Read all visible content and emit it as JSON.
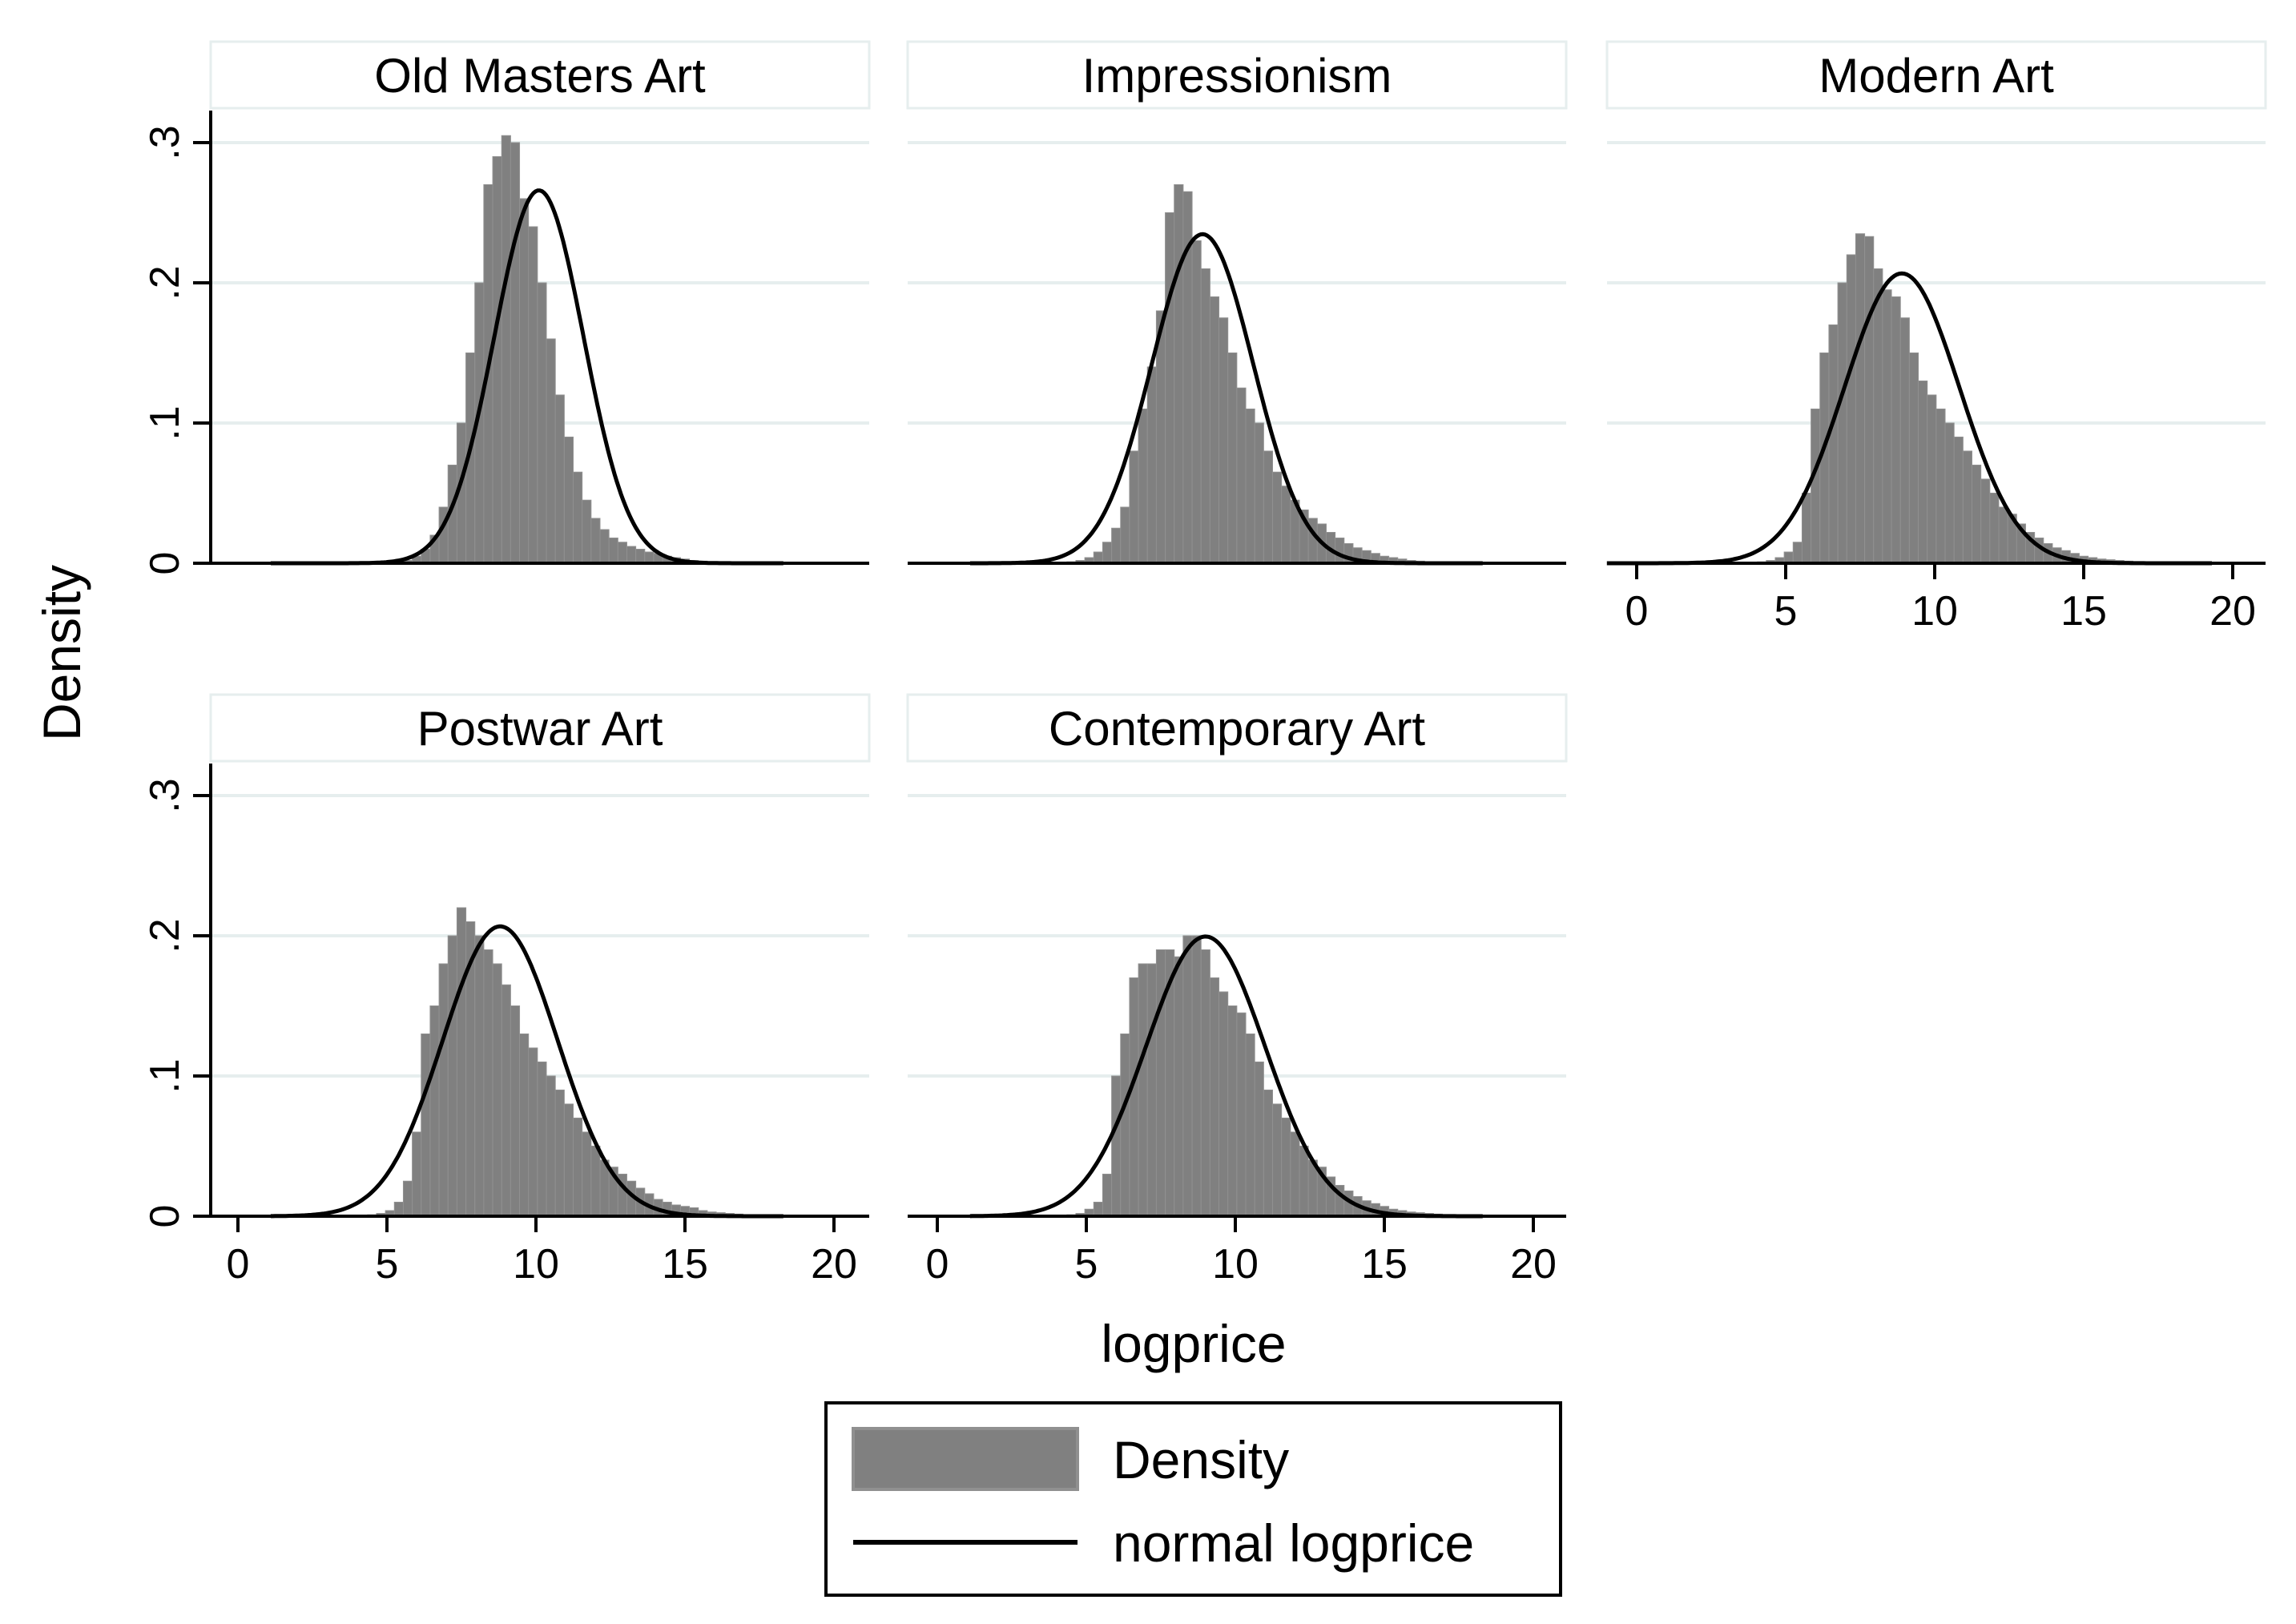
{
  "chart_data": {
    "type": "histogram",
    "layout": "faceted grid, 2 rows x 3 columns",
    "xlabel": "logprice",
    "ylabel": "Density",
    "xlim": [
      0,
      20
    ],
    "ylim": [
      0,
      0.3
    ],
    "xticks": [
      {
        "value": 0,
        "label": "0"
      },
      {
        "value": 5,
        "label": "5"
      },
      {
        "value": 10,
        "label": "10"
      },
      {
        "value": 15,
        "label": "15"
      },
      {
        "value": 20,
        "label": "20"
      }
    ],
    "yticks": [
      {
        "value": 0,
        "label": "0"
      },
      {
        "value": 0.1,
        "label": ".1"
      },
      {
        "value": 0.2,
        "label": ".2"
      },
      {
        "value": 0.3,
        "label": ".3"
      }
    ],
    "grid": true,
    "bar_width": 0.3,
    "colors": {
      "bars": "#808080",
      "bar_edge": "#909090",
      "curve": "#000000",
      "grid": "#e6eeee",
      "title_box_border": "#e6eeee"
    },
    "legend": {
      "position": "bottom-center",
      "entries": [
        {
          "label": "Density",
          "symbol": "bar"
        },
        {
          "label": "normal logprice",
          "symbol": "line"
        }
      ]
    },
    "panels": [
      {
        "title": "Old Masters Art",
        "normal": {
          "mean": 10.1,
          "sd": 1.5,
          "x_range": [
            1.1,
            18.3
          ]
        },
        "histogram": {
          "x": [
            5.7,
            6.0,
            6.3,
            6.6,
            6.9,
            7.2,
            7.5,
            7.8,
            8.1,
            8.4,
            8.7,
            9.0,
            9.3,
            9.6,
            9.9,
            10.2,
            10.5,
            10.8,
            11.1,
            11.4,
            11.7,
            12.0,
            12.3,
            12.6,
            12.9,
            13.2,
            13.5,
            13.8,
            14.1,
            14.4,
            14.7,
            15.0,
            15.3,
            15.6,
            15.9,
            16.2,
            16.5,
            16.8
          ],
          "y": [
            0.002,
            0.005,
            0.01,
            0.02,
            0.04,
            0.07,
            0.1,
            0.15,
            0.2,
            0.27,
            0.29,
            0.305,
            0.3,
            0.26,
            0.24,
            0.2,
            0.16,
            0.12,
            0.09,
            0.065,
            0.045,
            0.032,
            0.024,
            0.018,
            0.015,
            0.012,
            0.01,
            0.008,
            0.007,
            0.005,
            0.004,
            0.003,
            0.002,
            0.0015,
            0.001,
            0.001,
            0.0005,
            0.0005
          ]
        }
      },
      {
        "title": "Impressionism",
        "normal": {
          "mean": 8.9,
          "sd": 1.7,
          "x_range": [
            1.1,
            18.3
          ]
        },
        "histogram": {
          "x": [
            4.5,
            4.8,
            5.1,
            5.4,
            5.7,
            6.0,
            6.3,
            6.6,
            6.9,
            7.2,
            7.5,
            7.8,
            8.1,
            8.4,
            8.7,
            9.0,
            9.3,
            9.6,
            9.9,
            10.2,
            10.5,
            10.8,
            11.1,
            11.4,
            11.7,
            12.0,
            12.3,
            12.6,
            12.9,
            13.2,
            13.5,
            13.8,
            14.1,
            14.4,
            14.7,
            15.0,
            15.3,
            15.6,
            15.9,
            16.2,
            16.5,
            16.8,
            17.1
          ],
          "y": [
            0.001,
            0.002,
            0.004,
            0.008,
            0.015,
            0.025,
            0.04,
            0.08,
            0.11,
            0.14,
            0.18,
            0.25,
            0.27,
            0.265,
            0.23,
            0.21,
            0.19,
            0.175,
            0.15,
            0.125,
            0.11,
            0.1,
            0.08,
            0.065,
            0.055,
            0.045,
            0.038,
            0.032,
            0.028,
            0.022,
            0.018,
            0.014,
            0.011,
            0.009,
            0.007,
            0.005,
            0.004,
            0.003,
            0.002,
            0.0015,
            0.001,
            0.0008,
            0.0005
          ]
        }
      },
      {
        "title": "Modern Art",
        "normal": {
          "mean": 8.9,
          "sd": 1.93,
          "x_range": [
            -1.0,
            19.3
          ]
        },
        "histogram": {
          "x": [
            3.9,
            4.2,
            4.5,
            4.8,
            5.1,
            5.4,
            5.7,
            6.0,
            6.3,
            6.6,
            6.9,
            7.2,
            7.5,
            7.8,
            8.1,
            8.4,
            8.7,
            9.0,
            9.3,
            9.6,
            9.9,
            10.2,
            10.5,
            10.8,
            11.1,
            11.4,
            11.7,
            12.0,
            12.3,
            12.6,
            12.9,
            13.2,
            13.5,
            13.8,
            14.1,
            14.4,
            14.7,
            15.0,
            15.3,
            15.6,
            15.9,
            16.2,
            16.5,
            16.8,
            17.1,
            17.4,
            17.7,
            18.0
          ],
          "y": [
            0.0005,
            0.001,
            0.002,
            0.004,
            0.008,
            0.015,
            0.05,
            0.11,
            0.15,
            0.17,
            0.2,
            0.22,
            0.235,
            0.233,
            0.21,
            0.195,
            0.19,
            0.175,
            0.15,
            0.13,
            0.12,
            0.11,
            0.1,
            0.09,
            0.08,
            0.07,
            0.06,
            0.05,
            0.04,
            0.035,
            0.028,
            0.022,
            0.018,
            0.014,
            0.011,
            0.009,
            0.007,
            0.005,
            0.004,
            0.003,
            0.0025,
            0.002,
            0.0015,
            0.001,
            0.001,
            0.0008,
            0.0005,
            0.0005
          ]
        }
      },
      {
        "title": "Postwar Art",
        "normal": {
          "mean": 8.8,
          "sd": 1.93,
          "x_range": [
            1.1,
            18.3
          ]
        },
        "histogram": {
          "x": [
            4.2,
            4.5,
            4.8,
            5.1,
            5.4,
            5.7,
            6.0,
            6.3,
            6.6,
            6.9,
            7.2,
            7.5,
            7.8,
            8.1,
            8.4,
            8.7,
            9.0,
            9.3,
            9.6,
            9.9,
            10.2,
            10.5,
            10.8,
            11.1,
            11.4,
            11.7,
            12.0,
            12.3,
            12.6,
            12.9,
            13.2,
            13.5,
            13.8,
            14.1,
            14.4,
            14.7,
            15.0,
            15.3,
            15.6,
            15.9,
            16.2,
            16.5,
            16.8,
            17.1,
            17.4,
            17.7,
            18.0
          ],
          "y": [
            0.0005,
            0.001,
            0.002,
            0.004,
            0.01,
            0.025,
            0.06,
            0.13,
            0.15,
            0.18,
            0.2,
            0.22,
            0.21,
            0.2,
            0.19,
            0.18,
            0.165,
            0.15,
            0.13,
            0.12,
            0.11,
            0.1,
            0.09,
            0.08,
            0.07,
            0.06,
            0.05,
            0.04,
            0.035,
            0.03,
            0.025,
            0.02,
            0.016,
            0.012,
            0.01,
            0.008,
            0.007,
            0.006,
            0.004,
            0.003,
            0.0025,
            0.002,
            0.0015,
            0.001,
            0.001,
            0.0008,
            0.0005
          ]
        }
      },
      {
        "title": "Contemporary Art",
        "normal": {
          "mean": 9.0,
          "sd": 2.0,
          "x_range": [
            1.1,
            18.3
          ]
        },
        "histogram": {
          "x": [
            4.2,
            4.5,
            4.8,
            5.1,
            5.4,
            5.7,
            6.0,
            6.3,
            6.6,
            6.9,
            7.2,
            7.5,
            7.8,
            8.1,
            8.4,
            8.7,
            9.0,
            9.3,
            9.6,
            9.9,
            10.2,
            10.5,
            10.8,
            11.1,
            11.4,
            11.7,
            12.0,
            12.3,
            12.6,
            12.9,
            13.2,
            13.5,
            13.8,
            14.1,
            14.4,
            14.7,
            15.0,
            15.3,
            15.6,
            15.9,
            16.2,
            16.5,
            16.8,
            17.1,
            17.4,
            17.7,
            18.0
          ],
          "y": [
            0.0005,
            0.001,
            0.002,
            0.005,
            0.01,
            0.03,
            0.1,
            0.13,
            0.17,
            0.18,
            0.18,
            0.19,
            0.19,
            0.185,
            0.2,
            0.2,
            0.19,
            0.17,
            0.16,
            0.15,
            0.145,
            0.13,
            0.11,
            0.09,
            0.08,
            0.07,
            0.06,
            0.05,
            0.04,
            0.035,
            0.028,
            0.022,
            0.018,
            0.014,
            0.011,
            0.009,
            0.007,
            0.005,
            0.004,
            0.003,
            0.0025,
            0.002,
            0.0015,
            0.001,
            0.001,
            0.0008,
            0.0005
          ]
        }
      }
    ]
  }
}
